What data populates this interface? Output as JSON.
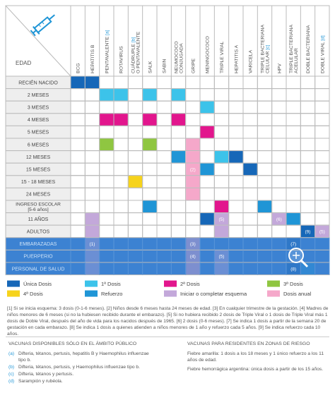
{
  "table": {
    "age_header": "EDAD",
    "columns": [
      {
        "lines": [
          [
            "BCG"
          ]
        ]
      },
      {
        "lines": [
          [
            "HEPATITIS B"
          ]
        ]
      },
      {
        "lines": [
          [
            "PENTAVALENTE ",
            "[a]"
          ]
        ]
      },
      {
        "lines": [
          [
            "ROTAVIRUS"
          ]
        ]
      },
      {
        "lines": [
          [
            "CUÁDRUPLE ",
            "[b]"
          ],
          [
            "O PENTAVALENTE"
          ]
        ]
      },
      {
        "lines": [
          [
            "SALK"
          ]
        ]
      },
      {
        "lines": [
          [
            "SABIN"
          ]
        ]
      },
      {
        "lines": [
          [
            "NEUMOCOCO"
          ],
          [
            "CONJUGADA"
          ]
        ]
      },
      {
        "lines": [
          [
            "GRIPE"
          ]
        ]
      },
      {
        "lines": [
          [
            "MENINGOCOCO"
          ]
        ]
      },
      {
        "lines": [
          [
            "TRIPLE VIRAL"
          ]
        ]
      },
      {
        "lines": [
          [
            "HEPATITIS A"
          ]
        ]
      },
      {
        "lines": [
          [
            "VARICELA"
          ]
        ]
      },
      {
        "lines": [
          [
            "TRIPLE BACTERIANA"
          ],
          [
            "CELULAR ",
            "[c]"
          ]
        ]
      },
      {
        "lines": [
          [
            "HPV"
          ]
        ]
      },
      {
        "lines": [
          [
            "TRIPLE BACTERIANA"
          ],
          [
            "ACELULAR"
          ]
        ]
      },
      {
        "lines": [
          [
            "DOBLE BACTERIANA"
          ]
        ]
      },
      {
        "lines": [
          [
            "DOBLE VIRAL ",
            "[d]"
          ]
        ]
      }
    ],
    "rows": [
      {
        "label": [
          "RECIÉN NACIDO"
        ],
        "cells": [
          {
            "dose": "Única Dosis"
          },
          {
            "dose": "Única Dosis"
          },
          null,
          null,
          null,
          null,
          null,
          null,
          null,
          null,
          null,
          null,
          null,
          null,
          null,
          null,
          null,
          null
        ]
      },
      {
        "label": [
          "2 MESES"
        ],
        "cells": [
          null,
          null,
          {
            "dose": "1ª Dosis"
          },
          {
            "dose": "1ª Dosis"
          },
          null,
          {
            "dose": "1ª Dosis"
          },
          null,
          {
            "dose": "1ª Dosis"
          },
          null,
          null,
          null,
          null,
          null,
          null,
          null,
          null,
          null,
          null
        ]
      },
      {
        "label": [
          "3 MESES"
        ],
        "cells": [
          null,
          null,
          null,
          null,
          null,
          null,
          null,
          null,
          null,
          {
            "dose": "1ª Dosis"
          },
          null,
          null,
          null,
          null,
          null,
          null,
          null,
          null
        ]
      },
      {
        "label": [
          "4 MESES"
        ],
        "cells": [
          null,
          null,
          {
            "dose": "2ª Dosis"
          },
          {
            "dose": "2ª Dosis"
          },
          null,
          {
            "dose": "2ª Dosis"
          },
          null,
          {
            "dose": "2ª Dosis"
          },
          null,
          null,
          null,
          null,
          null,
          null,
          null,
          null,
          null,
          null
        ]
      },
      {
        "label": [
          "5 MESES"
        ],
        "cells": [
          null,
          null,
          null,
          null,
          null,
          null,
          null,
          null,
          null,
          {
            "dose": "2ª Dosis"
          },
          null,
          null,
          null,
          null,
          null,
          null,
          null,
          null
        ]
      },
      {
        "label": [
          "6 MESES"
        ],
        "cells": [
          null,
          null,
          {
            "dose": "3ª Dosis"
          },
          null,
          null,
          {
            "dose": "3ª Dosis"
          },
          null,
          null,
          {
            "dose": "Dosis anual"
          },
          null,
          null,
          null,
          null,
          null,
          null,
          null,
          null,
          null
        ]
      },
      {
        "label": [
          "12 MESES"
        ],
        "cells": [
          null,
          null,
          null,
          null,
          null,
          null,
          null,
          {
            "dose": "Refuerzo"
          },
          {
            "dose": "Dosis anual"
          },
          null,
          {
            "dose": "1ª Dosis"
          },
          {
            "dose": "Única Dosis"
          },
          null,
          null,
          null,
          null,
          null,
          null
        ]
      },
      {
        "label": [
          "15 MESES"
        ],
        "cells": [
          null,
          null,
          null,
          null,
          null,
          null,
          null,
          null,
          {
            "dose": "Dosis anual",
            "text": "(2)"
          },
          {
            "dose": "Refuerzo"
          },
          null,
          null,
          {
            "dose": "Única Dosis"
          },
          null,
          null,
          null,
          null,
          null
        ]
      },
      {
        "label": [
          "15 - 18 MESES"
        ],
        "cells": [
          null,
          null,
          null,
          null,
          {
            "dose": "4ª Dosis"
          },
          null,
          null,
          null,
          {
            "dose": "Dosis anual"
          },
          null,
          null,
          null,
          null,
          null,
          null,
          null,
          null,
          null
        ]
      },
      {
        "label": [
          "24 MESES"
        ],
        "cells": [
          null,
          null,
          null,
          null,
          null,
          null,
          null,
          null,
          {
            "dose": "Dosis anual"
          },
          null,
          null,
          null,
          null,
          null,
          null,
          null,
          null,
          null
        ]
      },
      {
        "label": [
          "INGRESO ESCOLAR",
          "[5-6 años]"
        ],
        "cells": [
          null,
          null,
          null,
          null,
          null,
          {
            "dose": "Refuerzo"
          },
          null,
          null,
          null,
          null,
          {
            "dose": "2ª Dosis"
          },
          null,
          null,
          {
            "dose": "Refuerzo"
          },
          null,
          null,
          null,
          null
        ]
      },
      {
        "label": [
          "11 AÑOS"
        ],
        "cells": [
          null,
          {
            "dose": "Iniciar o completar esquema"
          },
          null,
          null,
          null,
          null,
          null,
          null,
          null,
          {
            "dose": "Única Dosis"
          },
          {
            "dose": "Iniciar o completar esquema",
            "text": "(5)"
          },
          null,
          null,
          null,
          {
            "dose": "Iniciar o completar esquema",
            "text": "(6)"
          },
          {
            "dose": "Refuerzo"
          },
          null,
          null
        ]
      },
      {
        "label": [
          "ADULTOS"
        ],
        "cells": [
          null,
          {
            "dose": "Iniciar o completar esquema"
          },
          null,
          null,
          null,
          null,
          null,
          null,
          null,
          null,
          {
            "dose": "Iniciar o completar esquema"
          },
          null,
          null,
          null,
          null,
          null,
          {
            "dose": "Única Dosis",
            "text": "(9)"
          },
          {
            "dose": "Iniciar o completar esquema",
            "text": "(5)"
          }
        ]
      },
      {
        "label": [
          "EMBARAZADAS"
        ],
        "highlight": true,
        "cells": [
          null,
          {
            "dose": "Iniciar o completar esquema",
            "text": "(1)"
          },
          null,
          null,
          null,
          null,
          null,
          null,
          {
            "dose": "Dosis anual",
            "text": "(3)"
          },
          null,
          null,
          null,
          null,
          null,
          null,
          {
            "dose": "Única Dosis",
            "text": "(7)"
          },
          null,
          null
        ]
      },
      {
        "label": [
          "PUERPERIO"
        ],
        "highlight": true,
        "cells": [
          null,
          {
            "dose": "Iniciar o completar esquema"
          },
          null,
          null,
          null,
          null,
          null,
          null,
          {
            "dose": "Dosis anual",
            "text": "(4)"
          },
          null,
          {
            "dose": "Iniciar o completar esquema",
            "text": "(5)"
          },
          null,
          null,
          null,
          null,
          null,
          null,
          null
        ]
      },
      {
        "label": [
          "PERSONAL DE SALUD"
        ],
        "highlight": true,
        "cells": [
          null,
          {
            "dose": "Iniciar o completar esquema"
          },
          null,
          null,
          null,
          null,
          null,
          null,
          {
            "dose": "Dosis anual"
          },
          null,
          {
            "dose": "Iniciar o completar esquema"
          },
          null,
          null,
          null,
          null,
          {
            "dose": "Única Dosis",
            "text": "(8)"
          },
          {
            "dose": "Refuerzo"
          },
          null
        ]
      }
    ]
  },
  "legend": [
    {
      "label": "Única Dosis",
      "color": "#1667b8"
    },
    {
      "label": "1ª Dosis",
      "color": "#3cc3ea"
    },
    {
      "label": "2ª Dosis",
      "color": "#e2168d"
    },
    {
      "label": "3ª Dosis",
      "color": "#8fc641"
    },
    {
      "label": "4ª Dosis",
      "color": "#f6d31c"
    },
    {
      "label": "Refuerzo",
      "color": "#1f95d6"
    },
    {
      "label": "Iniciar o completar esquema",
      "color": "#c3a8da"
    },
    {
      "label": "Dosis anual",
      "color": "#f5a8ca"
    }
  ],
  "footnotes": "[1] Si se inicia esquema: 3 dosis (0-1-6 meses). [2] Niños desde 6 meses hasta 24 meses de edad. [3] En cualquier trimestre de la gestación. [4] Madres de niños menores de 6 meses (si no la hubiesen recibido durante el embarazo). [5] Si no hubiera recibido 2 dosis de Triple Viral o 1 dosis de Triple Viral más 1 dosis de Doble Viral, después del año de vida para los nacidos después de 1965. [6] 2 dosis (0-6 meses). [7] Se indica 1 dosis a partir de la semana 20 de gestación en cada embarazo. [8] Se indica 1 dosis a quienes atienden a niños menores de 1 año y refuerzo cada 5 años. [9] Se indica refuerzo cada 10 años.",
  "public_only": {
    "title": "VACUNAS DISPONIBLES SÓLO EN EL ÁMBITO PÚBLICO",
    "items": [
      {
        "mark": "(a)",
        "text": "Difteria, tétanos, pertusis, hepatitis B y Haemophilus influenzae tipo b."
      },
      {
        "mark": "(b)",
        "text": "Difteria, tétanos, pertusis, y Haemophilus influenzae tipo b."
      },
      {
        "mark": "(c)",
        "text": "Difteria, tétanos y pertusis."
      },
      {
        "mark": "(d)",
        "text": "Sarampión y rubéola."
      }
    ]
  },
  "risk_zones": {
    "title": "VACUNAS PARA RESIDENTES EN ZONAS DE RIESGO",
    "items": [
      "Fiebre amarilla: 1 dosis a los 18 meses y 1 único refuerzo a los 11 años de edad.",
      "Fiebre hemorrágica argentina: única dosis a partir de los 15 años."
    ]
  }
}
